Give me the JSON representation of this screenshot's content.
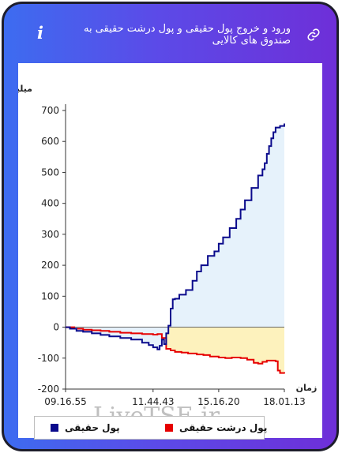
{
  "header": {
    "title": "ورود و خروج پول حقیقی و پول درشت حقیقی به صندوق های کالایی",
    "info_icon_glyph": "i",
    "info_icon": "info-icon",
    "link_icon": "link-icon"
  },
  "watermark": "LiveTSE.ir",
  "chart_data": {
    "type": "line",
    "ylabel": "میلیارد تومان",
    "xlabel": "زمان",
    "ylim": [
      -200,
      700
    ],
    "yticks": [
      "700",
      "600",
      "500",
      "400",
      "300",
      "200",
      "100",
      "0",
      "-100",
      "-200"
    ],
    "xticks": [
      "09.16.55",
      "11.44.43",
      "15.16.20",
      "18.01.13"
    ],
    "grid": false,
    "legend_position": "bottom",
    "x_index_range": [
      0,
      100
    ],
    "xtick_positions": [
      0,
      40,
      70,
      100
    ],
    "series": [
      {
        "name": "پول حقیقی",
        "color": "#0a0a8c",
        "fill": "#e6f2fb",
        "x": [
          0,
          2,
          5,
          8,
          12,
          16,
          20,
          25,
          30,
          35,
          38,
          40,
          42,
          43,
          44,
          45,
          46,
          47,
          48,
          49,
          50,
          52,
          55,
          58,
          60,
          62,
          65,
          68,
          70,
          72,
          75,
          78,
          80,
          82,
          85,
          88,
          90,
          91,
          92,
          93,
          94,
          95,
          96,
          98,
          100
        ],
        "values": [
          0,
          -5,
          -12,
          -15,
          -20,
          -25,
          -30,
          -35,
          -40,
          -50,
          -58,
          -65,
          -72,
          -60,
          -40,
          -55,
          -20,
          5,
          60,
          90,
          92,
          105,
          120,
          150,
          180,
          200,
          230,
          245,
          270,
          290,
          320,
          350,
          380,
          410,
          450,
          490,
          510,
          530,
          560,
          585,
          610,
          630,
          645,
          650,
          658
        ]
      },
      {
        "name": "پول درشت حقیقی",
        "color": "#e60000",
        "fill": "#fdf2bd",
        "x": [
          0,
          2,
          4,
          8,
          12,
          16,
          20,
          25,
          30,
          35,
          38,
          40,
          42,
          44,
          46,
          48,
          50,
          53,
          56,
          60,
          63,
          66,
          70,
          73,
          76,
          80,
          83,
          86,
          88,
          90,
          92,
          94,
          96,
          97,
          98,
          100
        ],
        "values": [
          0,
          0,
          -5,
          -8,
          -10,
          -12,
          -15,
          -18,
          -20,
          -22,
          -22,
          -24,
          -22,
          -35,
          -70,
          -75,
          -80,
          -82,
          -85,
          -88,
          -90,
          -95,
          -98,
          -100,
          -98,
          -100,
          -105,
          -115,
          -118,
          -112,
          -108,
          -108,
          -110,
          -140,
          -148,
          -150
        ]
      }
    ]
  }
}
